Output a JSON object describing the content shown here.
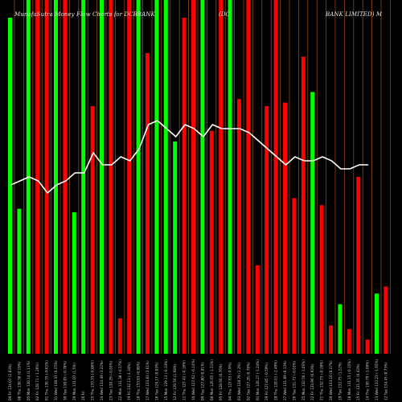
{
  "header": {
    "part1": "MunafaSutra Money Flow Charts for DCBBANK",
    "part2": "(DC",
    "part3": "BANK LIMITED) M"
  },
  "colors": {
    "background": "#000000",
    "up": "#00ff00",
    "down": "#ff0000",
    "guide": "#8b4513",
    "line": "#ffffff"
  },
  "chart_data": {
    "type": "bar",
    "ylim": [
      0,
      100
    ],
    "line_ylim": [
      0,
      100
    ],
    "bars": [
      {
        "label": "09 Fri 134.07 (2.83%)",
        "value": 95,
        "dir": "up"
      },
      {
        "label": "08 Thu 130.38 (0.19%)",
        "value": 41,
        "dir": "up"
      },
      {
        "label": "05 Mon 130.14 (1.11%)",
        "value": 100,
        "dir": "up"
      },
      {
        "label": "02 Fri 128.71 (-1.26%)",
        "value": 100,
        "dir": "down"
      },
      {
        "label": "01 Thu 130.35 (-0.01%)",
        "value": 100,
        "dir": "down"
      },
      {
        "label": "31 Wed 130.37 (0.25%)",
        "value": 100,
        "dir": "up"
      },
      {
        "label": "30 Tue 130.05 (-0.78%)",
        "value": 100,
        "dir": "down"
      },
      {
        "label": "29 Mon 131.07 (1.5%)",
        "value": 40,
        "dir": "up"
      },
      {
        "label": "26 Fri",
        "value": 100,
        "dir": "up"
      },
      {
        "label": "25 Thu 133.33 (-0.86%)",
        "value": 70,
        "dir": "down"
      },
      {
        "label": "24 Wed 134.49 (3.22%)",
        "value": 100,
        "dir": "up"
      },
      {
        "label": "23 Tue 130.29 (-0.83%)",
        "value": 100,
        "dir": "down"
      },
      {
        "label": "22 Mon 131.38 (-0.57%)",
        "value": 10,
        "dir": "down"
      },
      {
        "label": "19 Fri 132.13 (-1.34%)",
        "value": 100,
        "dir": "down"
      },
      {
        "label": "18 Thu 133.93 (0.08%)",
        "value": 100,
        "dir": "up"
      },
      {
        "label": "17 Wed 133.83 (3.61%)",
        "value": 85,
        "dir": "down"
      },
      {
        "label": "16 Tue 129.17 (0.03%)",
        "value": 100,
        "dir": "up"
      },
      {
        "label": "15 Mon 129.13 (-0.33%)",
        "value": 100,
        "dir": "up"
      },
      {
        "label": "12 Fri 129.56 (1.68%)",
        "value": 60,
        "dir": "up"
      },
      {
        "label": "11 Thu 127.42 (-0.16%)",
        "value": 95,
        "dir": "down"
      },
      {
        "label": "10 Wed 127.62 (-0.14%)",
        "value": 100,
        "dir": "down"
      },
      {
        "label": "09 Tue 127.80 (0.91%)",
        "value": 100,
        "dir": "up"
      },
      {
        "label": "08 Mon 126.65 (-1.51%)",
        "value": 63,
        "dir": "down"
      },
      {
        "label": "05 Fri 128.60 (0.76%)",
        "value": 100,
        "dir": "down"
      },
      {
        "label": "04 Thu 127.63 (-0.9%)",
        "value": 100,
        "dir": "up"
      },
      {
        "label": "03 Wed 128.79 (1.2%)",
        "value": 72,
        "dir": "down"
      },
      {
        "label": "02 Tue 127.26 (0.78%)",
        "value": 100,
        "dir": "down"
      },
      {
        "label": "01 Mon 126.27 (-1.24%)",
        "value": 25,
        "dir": "down"
      },
      {
        "label": "29 Fri 127.85 (-0.59%)",
        "value": 70,
        "dir": "down"
      },
      {
        "label": "28 Thu 128.61 (-2.49%)",
        "value": 100,
        "dir": "down"
      },
      {
        "label": "27 Wed 131.89 (0.13%)",
        "value": 71,
        "dir": "down"
      },
      {
        "label": "26 Tue 131.72 (-0.63%)",
        "value": 44,
        "dir": "down"
      },
      {
        "label": "25 Mon 132.56 (-1.05%)",
        "value": 84,
        "dir": "down"
      },
      {
        "label": "22 Fri 133.96 (0.93%)",
        "value": 74,
        "dir": "up"
      },
      {
        "label": "21 Thu 132.73 (-0.28%)",
        "value": 42,
        "dir": "down"
      },
      {
        "label": "20 Wed 133.10 (0.27%)",
        "value": 8,
        "dir": "down"
      },
      {
        "label": "19 Tue 132.75 (1.22%)",
        "value": 14,
        "dir": "up"
      },
      {
        "label": "18 Mon 131.15 (-0.15%)",
        "value": 7,
        "dir": "down"
      },
      {
        "label": "15 Fri 131.35 (0.43%)",
        "value": 50,
        "dir": "down"
      },
      {
        "label": "14 Thu 130.79 (-1.09%)",
        "value": 4,
        "dir": "down"
      },
      {
        "label": "13 Wed 132.23 (-1.65%)",
        "value": 17,
        "dir": "up"
      },
      {
        "label": "12 Tue 134.45 (0.73%)",
        "value": 19,
        "dir": "down"
      }
    ],
    "line": [
      54,
      55,
      56,
      55,
      52,
      54,
      55,
      57,
      57,
      62,
      59,
      59,
      61,
      60,
      63,
      69,
      70,
      68,
      66,
      69,
      68,
      66,
      69,
      68,
      68,
      68,
      67,
      65,
      63,
      61,
      59,
      61,
      60,
      60,
      61,
      60,
      58,
      58,
      59,
      59
    ]
  }
}
